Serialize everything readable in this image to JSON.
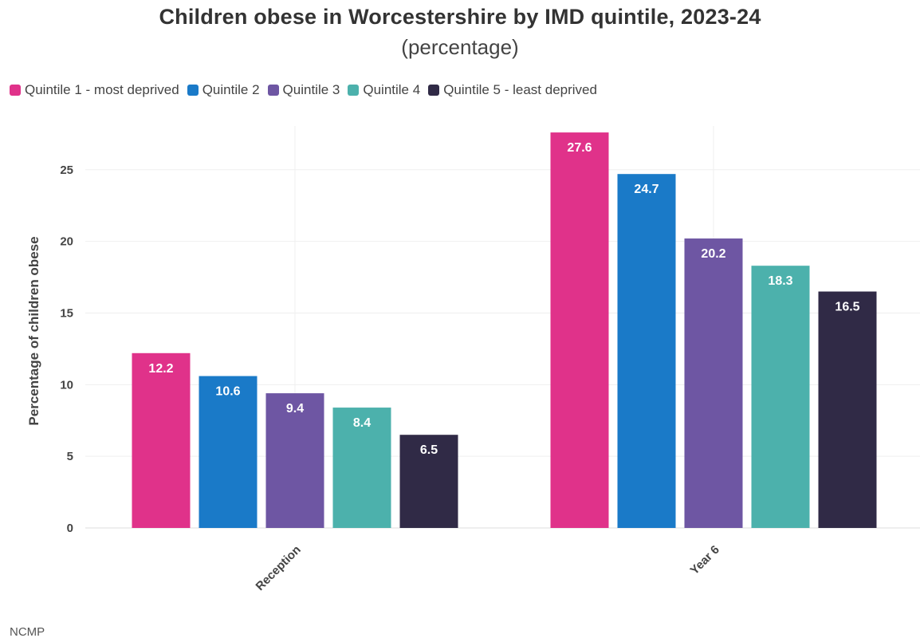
{
  "chart_data": {
    "type": "bar",
    "title": "Children obese in Worcestershire by IMD quintile, 2023-24",
    "subtitle": "(percentage)",
    "ylabel": "Percentage of children obese",
    "xlabel": "",
    "ylim": [
      0,
      27.6
    ],
    "yticks": [
      0,
      5,
      10,
      15,
      20,
      25
    ],
    "grid": true,
    "legend_placement": "top-left",
    "categories": [
      "Reception",
      "Year 6"
    ],
    "series": [
      {
        "name": "Quintile 1 - most deprived",
        "color": "#e0328a",
        "values": [
          12.2,
          27.6
        ]
      },
      {
        "name": "Quintile 2",
        "color": "#1a7ac8",
        "values": [
          10.6,
          24.7
        ]
      },
      {
        "name": "Quintile 3",
        "color": "#6e56a3",
        "values": [
          9.4,
          20.2
        ]
      },
      {
        "name": "Quintile 4",
        "color": "#4cb1ac",
        "values": [
          8.4,
          18.3
        ]
      },
      {
        "name": "Quintile 5 - least deprived",
        "color": "#302a46",
        "values": [
          6.5,
          16.5
        ]
      }
    ],
    "source": "NCMP"
  }
}
